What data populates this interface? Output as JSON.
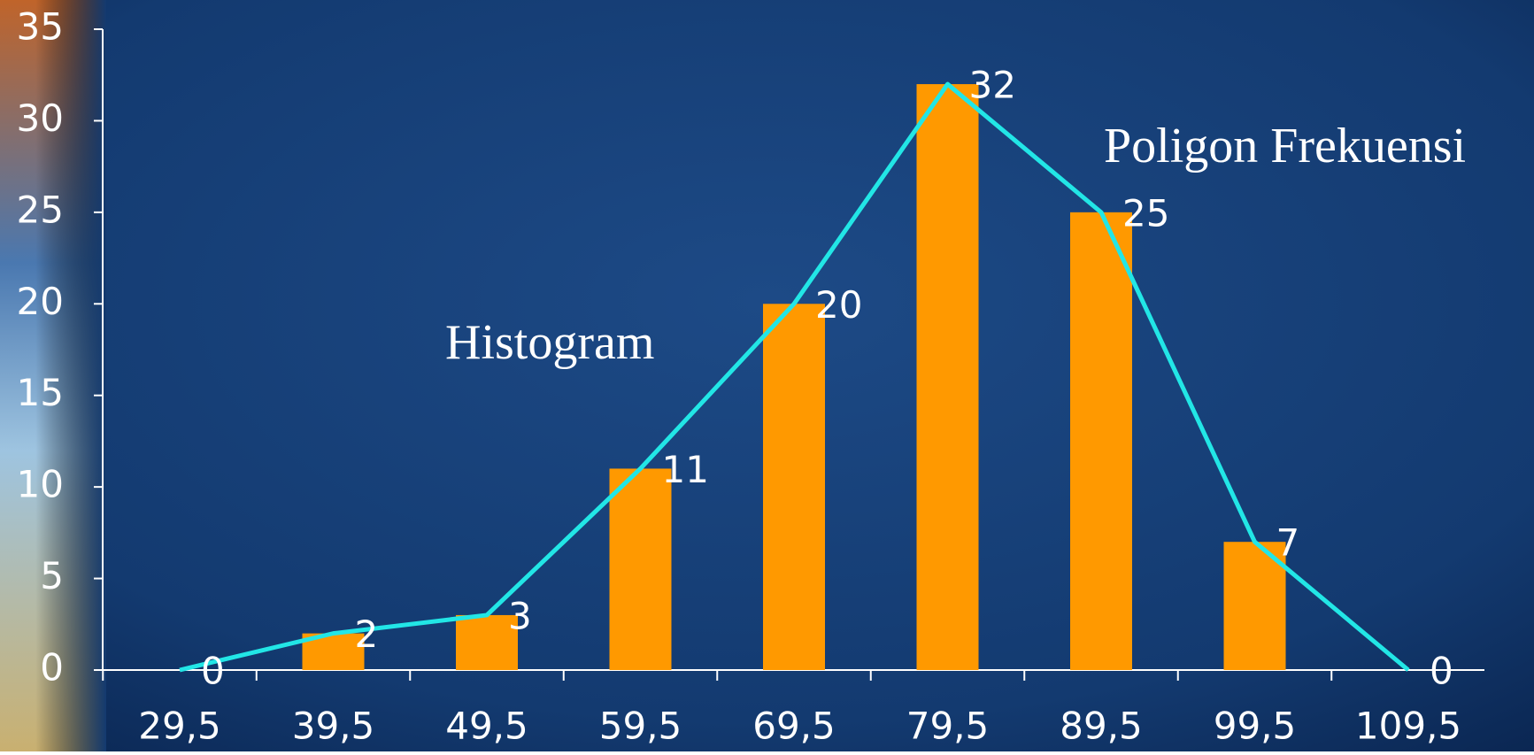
{
  "chart_data": {
    "type": "bar",
    "categories": [
      "29,5",
      "39,5",
      "49,5",
      "59,5",
      "69,5",
      "79,5",
      "89,5",
      "99,5",
      "109,5"
    ],
    "series": [
      {
        "name": "Histogram",
        "type": "bar",
        "color": "#ff9900",
        "values": [
          0,
          2,
          3,
          11,
          20,
          32,
          25,
          7,
          0
        ]
      },
      {
        "name": "Poligon Frekuensi",
        "type": "line",
        "color": "#22e6e6",
        "values": [
          0,
          2,
          3,
          11,
          20,
          32,
          25,
          7,
          0
        ]
      }
    ],
    "ylim": [
      0,
      35
    ],
    "yticks": [
      0,
      5,
      10,
      15,
      20,
      25,
      30,
      35
    ],
    "grid": false
  }
}
